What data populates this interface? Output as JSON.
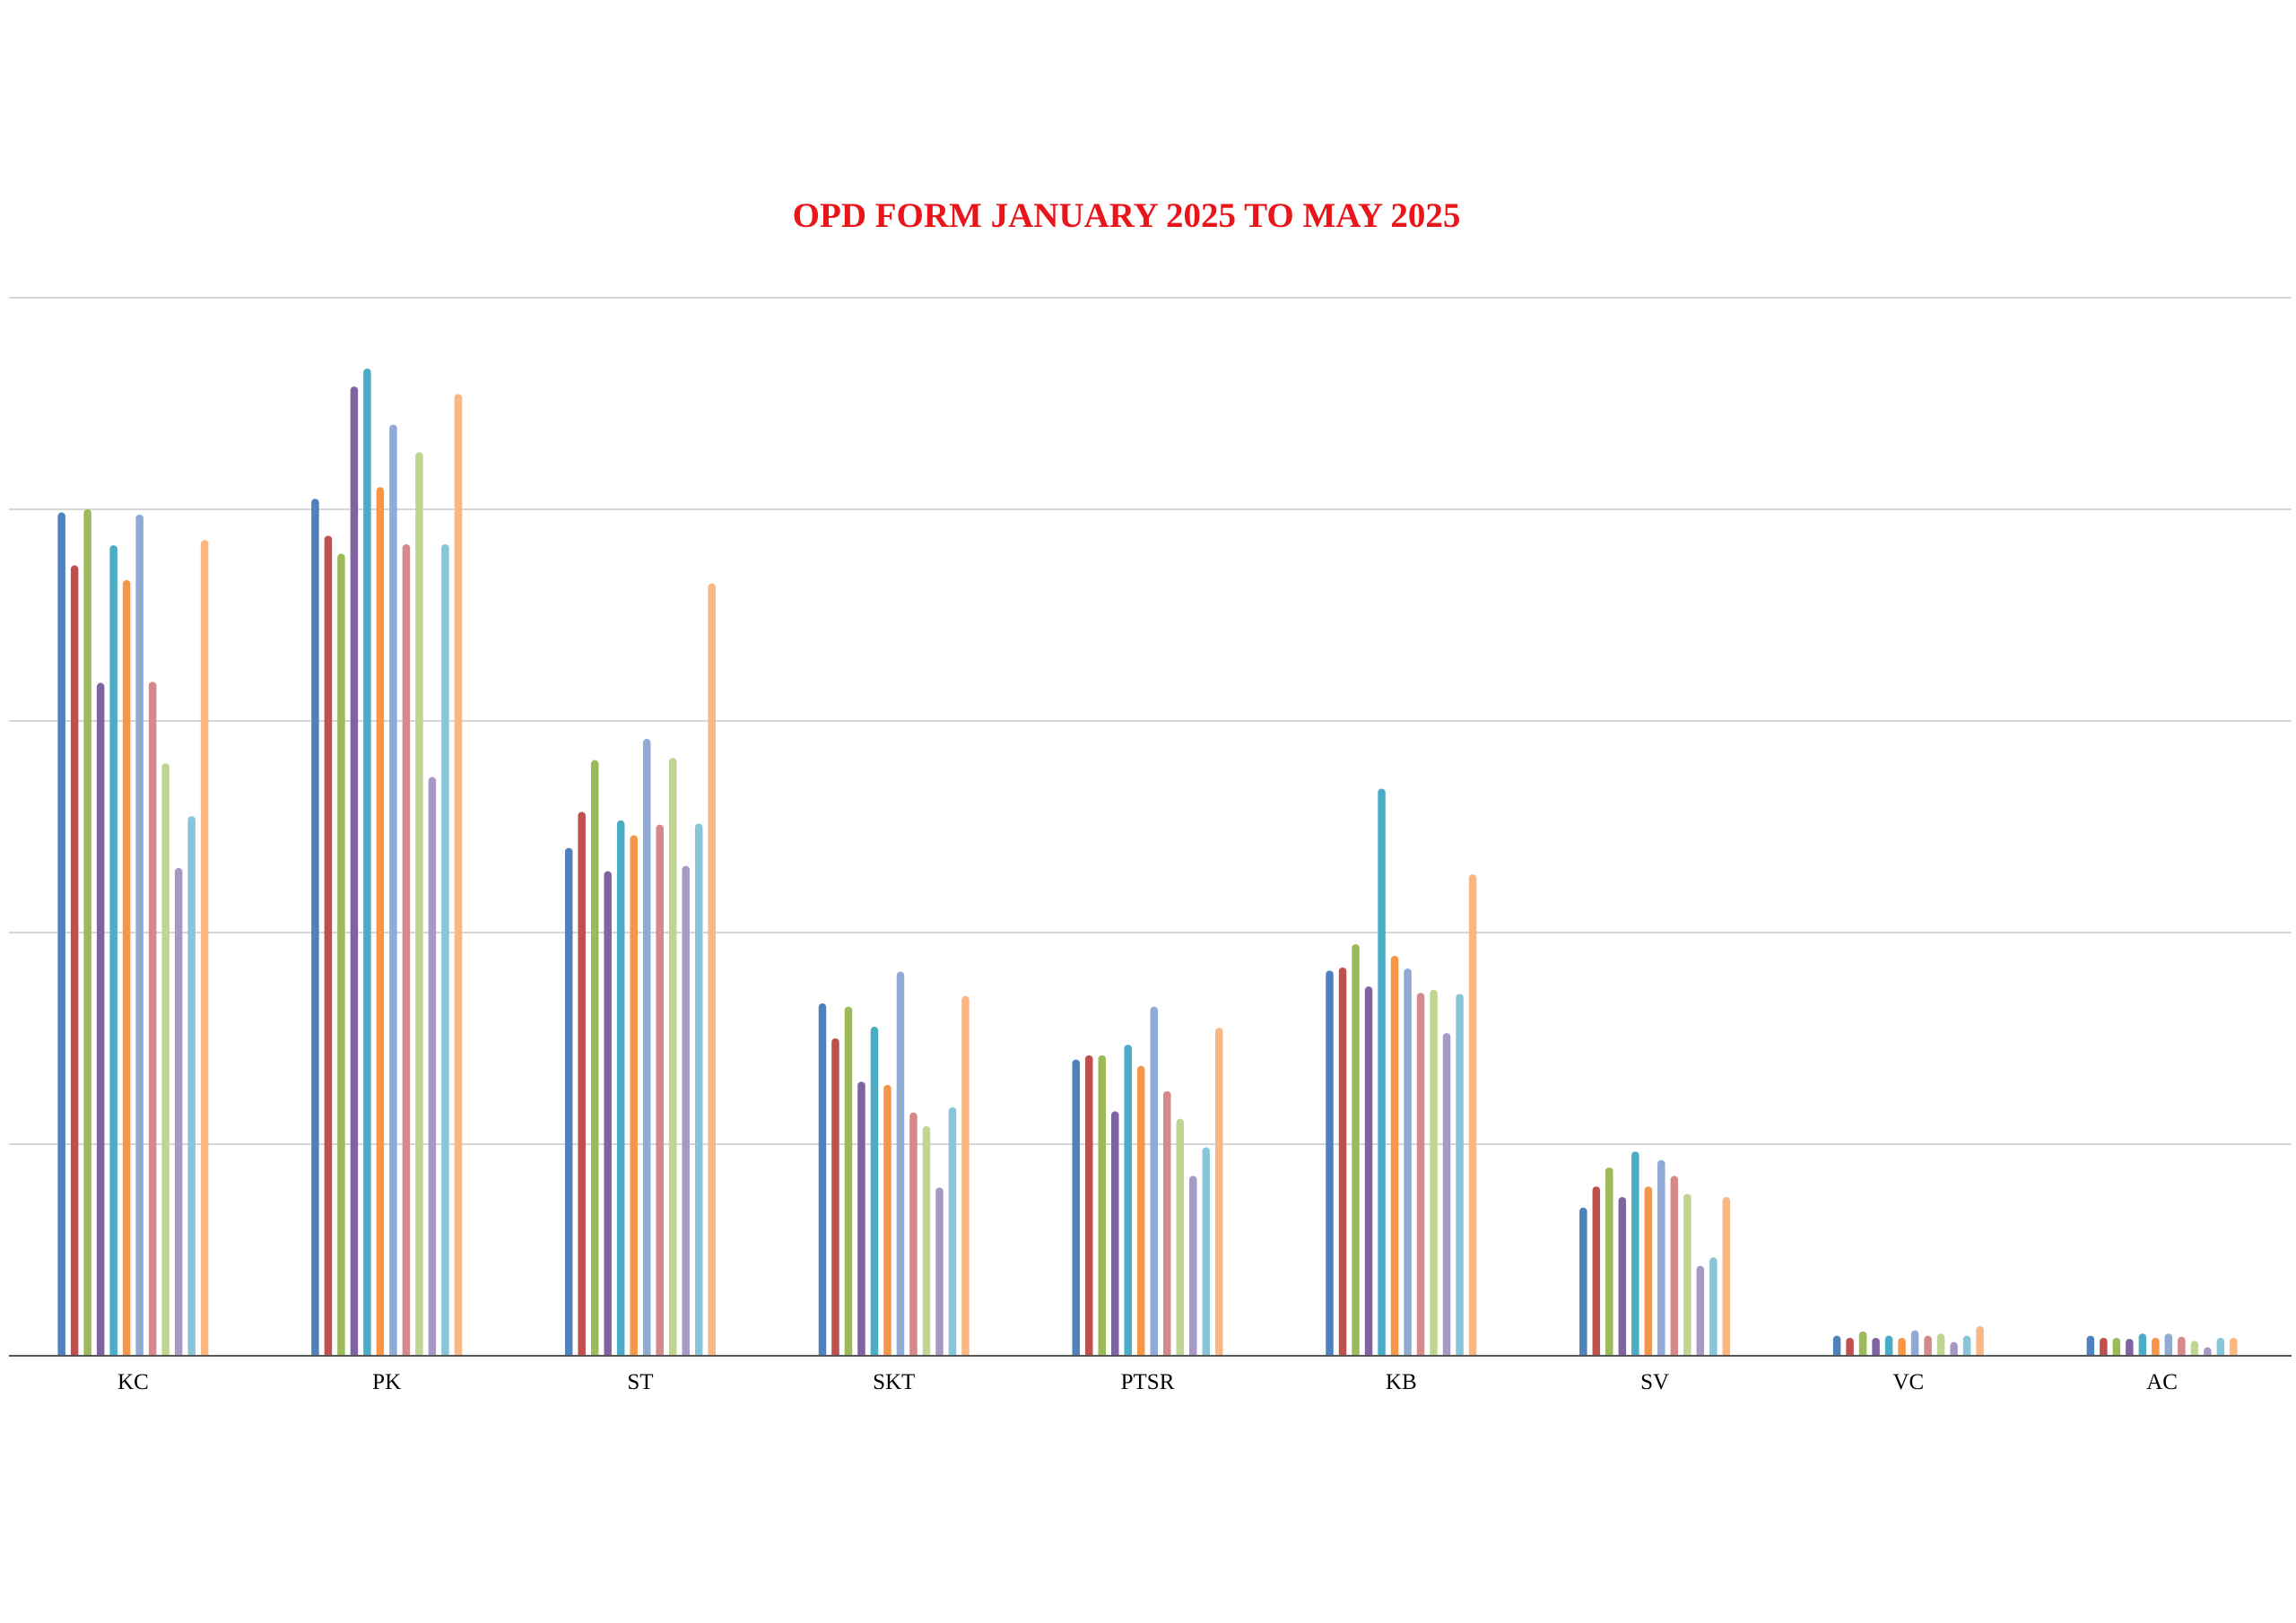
{
  "chart_data": {
    "type": "bar",
    "title": "OPD FORM JANUARY 2025 TO MAY 2025",
    "xlabel": "",
    "ylabel": "",
    "ylim": [
      0,
      100
    ],
    "grid": true,
    "legend": "none",
    "categories": [
      "KC",
      "PK",
      "ST",
      "SKT",
      "PTSR",
      "KB",
      "SV",
      "VC",
      "AC"
    ],
    "series": [
      {
        "color": "#4f81bd",
        "values": [
          79.7,
          81.0,
          48.0,
          33.3,
          28.0,
          36.4,
          14.0,
          1.9,
          1.9
        ]
      },
      {
        "color": "#c0504d",
        "values": [
          74.7,
          77.5,
          51.4,
          30.0,
          28.4,
          36.7,
          16.0,
          1.7,
          1.7
        ]
      },
      {
        "color": "#9bbb59",
        "values": [
          80.0,
          75.8,
          56.3,
          33.0,
          28.4,
          38.9,
          17.8,
          2.3,
          1.7
        ]
      },
      {
        "color": "#8064a2",
        "values": [
          63.6,
          91.6,
          45.8,
          25.9,
          23.1,
          34.9,
          15.0,
          1.7,
          1.6
        ]
      },
      {
        "color": "#4bacc6",
        "values": [
          76.6,
          93.3,
          50.6,
          31.1,
          29.4,
          53.6,
          19.3,
          1.9,
          2.1
        ]
      },
      {
        "color": "#f79646",
        "values": [
          73.3,
          82.1,
          49.2,
          25.6,
          27.4,
          37.8,
          16.0,
          1.7,
          1.7
        ]
      },
      {
        "color": "#8eaad5",
        "values": [
          79.5,
          88.0,
          58.3,
          36.3,
          33.0,
          36.6,
          18.5,
          2.4,
          2.1
        ]
      },
      {
        "color": "#d5898a",
        "values": [
          63.7,
          76.7,
          50.2,
          23.0,
          25.0,
          34.3,
          17.0,
          1.9,
          1.8
        ]
      },
      {
        "color": "#bfd591",
        "values": [
          56.0,
          85.4,
          56.5,
          21.7,
          22.4,
          34.6,
          15.3,
          2.1,
          1.4
        ]
      },
      {
        "color": "#a898c4",
        "values": [
          46.1,
          54.7,
          46.3,
          15.9,
          17.0,
          30.5,
          8.5,
          1.3,
          0.8
        ]
      },
      {
        "color": "#89c5d9",
        "values": [
          51.0,
          76.7,
          50.3,
          23.5,
          19.7,
          34.2,
          9.3,
          1.9,
          1.7
        ]
      },
      {
        "color": "#f9b784",
        "values": [
          77.1,
          90.9,
          73.0,
          34.0,
          31.0,
          45.5,
          15.0,
          2.8,
          1.7
        ]
      }
    ]
  }
}
